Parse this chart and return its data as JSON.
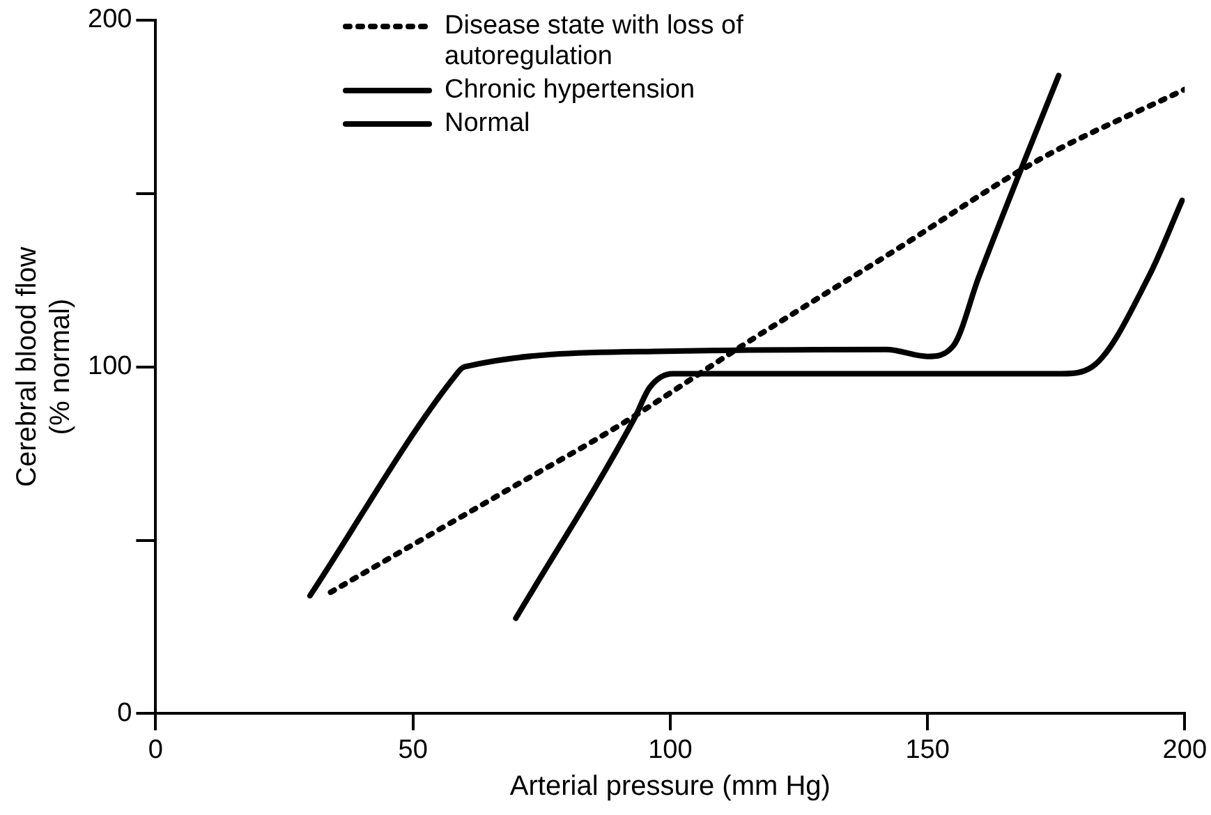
{
  "chart_data": {
    "type": "line",
    "xlabel": "Arterial pressure (mm Hg)",
    "ylabel": "Cerebral blood flow (% normal)",
    "xlim": [
      0,
      200
    ],
    "xticks": [
      0,
      50,
      100,
      150,
      200
    ],
    "ylim": [
      0,
      200
    ],
    "yticks": [
      0,
      {
        "value": 50,
        "label": null
      },
      100,
      {
        "value": 150,
        "label": null
      },
      200
    ],
    "grid": false,
    "legend": "top left",
    "marker": "none",
    "series": [
      {
        "name": "Disease state with loss of autoregulation",
        "color": "#000000",
        "line_style": "dotted",
        "x": [
          34,
          69,
          90,
          116,
          142,
          172,
          200
        ],
        "values": [
          35,
          65,
          83,
          108,
          132,
          160,
          180
        ]
      },
      {
        "name": "Chronic hypertension",
        "color": "#000000",
        "line_style": "solid",
        "x": [
          70,
          93,
          96,
          100.5,
          133,
          176,
          182,
          193,
          199.5
        ],
        "values": [
          27.5,
          85,
          94,
          98,
          98,
          98,
          100,
          126,
          148
        ]
      },
      {
        "name": "Normal",
        "color": "#000000",
        "line_style": "solid",
        "x": [
          30,
          58,
          60,
          99,
          142,
          150,
          155,
          160,
          169,
          175.5
        ],
        "values": [
          34,
          97,
          100,
          104.5,
          105,
          103,
          106,
          126,
          160,
          184
        ]
      }
    ]
  }
}
